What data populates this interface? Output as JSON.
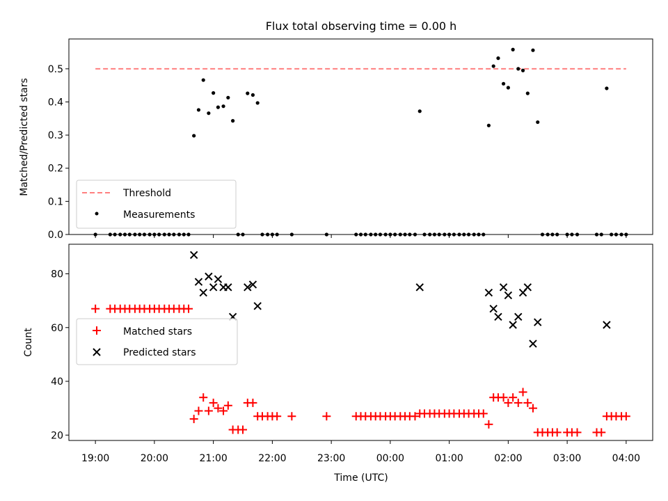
{
  "title": "Flux total observing time = 0.00 h",
  "xlabel": "Time (UTC)",
  "x_tick_labels": [
    "19:00",
    "20:00",
    "21:00",
    "22:00",
    "23:00",
    "00:00",
    "01:00",
    "02:00",
    "03:00",
    "04:00"
  ],
  "colors": {
    "threshold": "#ff7f7f",
    "measurement": "#000000",
    "matched": "#ff0000",
    "predicted": "#000000"
  },
  "chart_data": [
    {
      "type": "scatter",
      "ylabel": "Matched/Predicted stars",
      "xlim": [
        18.55,
        28.45
      ],
      "ylim": [
        0.0,
        0.59
      ],
      "y_ticks": [
        0.0,
        0.1,
        0.2,
        0.3,
        0.4,
        0.5
      ],
      "y_tick_labels": [
        "0.0",
        "0.1",
        "0.2",
        "0.3",
        "0.4",
        "0.5"
      ],
      "legend_loc": "lower-left",
      "threshold": {
        "name": "Threshold",
        "value": 0.5,
        "x_range": [
          19.0,
          28.0
        ]
      },
      "series": [
        {
          "name": "Measurements",
          "points": [
            [
              19.0,
              0
            ],
            [
              19.25,
              0
            ],
            [
              19.33,
              0
            ],
            [
              19.42,
              0
            ],
            [
              19.5,
              0
            ],
            [
              19.58,
              0
            ],
            [
              19.67,
              0
            ],
            [
              19.75,
              0
            ],
            [
              19.83,
              0
            ],
            [
              19.92,
              0
            ],
            [
              20.0,
              0
            ],
            [
              20.08,
              0
            ],
            [
              20.17,
              0
            ],
            [
              20.25,
              0
            ],
            [
              20.33,
              0
            ],
            [
              20.42,
              0
            ],
            [
              20.5,
              0
            ],
            [
              20.58,
              0
            ],
            [
              20.67,
              0.298
            ],
            [
              20.75,
              0.376
            ],
            [
              20.83,
              0.466
            ],
            [
              20.92,
              0.366
            ],
            [
              21.0,
              0.427
            ],
            [
              21.08,
              0.384
            ],
            [
              21.17,
              0.387
            ],
            [
              21.25,
              0.413
            ],
            [
              21.33,
              0.343
            ],
            [
              21.42,
              0
            ],
            [
              21.5,
              0
            ],
            [
              21.58,
              0.426
            ],
            [
              21.67,
              0.421
            ],
            [
              21.75,
              0.397
            ],
            [
              21.83,
              0
            ],
            [
              21.92,
              0
            ],
            [
              22.0,
              0
            ],
            [
              22.08,
              0
            ],
            [
              22.33,
              0
            ],
            [
              22.92,
              0
            ],
            [
              23.42,
              0
            ],
            [
              23.5,
              0
            ],
            [
              23.58,
              0
            ],
            [
              23.67,
              0
            ],
            [
              23.75,
              0
            ],
            [
              23.83,
              0
            ],
            [
              23.92,
              0
            ],
            [
              24.0,
              0
            ],
            [
              24.08,
              0
            ],
            [
              24.17,
              0
            ],
            [
              24.25,
              0
            ],
            [
              24.33,
              0
            ],
            [
              24.42,
              0
            ],
            [
              24.5,
              0.372
            ],
            [
              24.58,
              0
            ],
            [
              24.67,
              0
            ],
            [
              24.75,
              0
            ],
            [
              24.83,
              0
            ],
            [
              24.92,
              0
            ],
            [
              25.0,
              0
            ],
            [
              25.08,
              0
            ],
            [
              25.17,
              0
            ],
            [
              25.25,
              0
            ],
            [
              25.33,
              0
            ],
            [
              25.42,
              0
            ],
            [
              25.5,
              0
            ],
            [
              25.58,
              0
            ],
            [
              25.67,
              0.329
            ],
            [
              25.75,
              0.508
            ],
            [
              25.83,
              0.532
            ],
            [
              25.92,
              0.455
            ],
            [
              26.0,
              0.443
            ],
            [
              26.08,
              0.558
            ],
            [
              26.17,
              0.5
            ],
            [
              26.25,
              0.495
            ],
            [
              26.33,
              0.426
            ],
            [
              26.42,
              0.556
            ],
            [
              26.5,
              0.339
            ],
            [
              26.58,
              0
            ],
            [
              26.67,
              0
            ],
            [
              26.75,
              0
            ],
            [
              26.83,
              0
            ],
            [
              27.0,
              0
            ],
            [
              27.08,
              0
            ],
            [
              27.17,
              0
            ],
            [
              27.5,
              0
            ],
            [
              27.58,
              0
            ],
            [
              27.67,
              0.441
            ],
            [
              27.75,
              0
            ],
            [
              27.83,
              0
            ],
            [
              27.92,
              0
            ],
            [
              28.0,
              0
            ]
          ]
        }
      ]
    },
    {
      "type": "scatter",
      "ylabel": "Count",
      "xlim": [
        18.55,
        28.45
      ],
      "ylim": [
        18,
        91
      ],
      "y_ticks": [
        20,
        40,
        60,
        80
      ],
      "y_tick_labels": [
        "20",
        "40",
        "60",
        "80"
      ],
      "legend_loc": "center-left",
      "series": [
        {
          "name": "Matched stars",
          "marker": "plus",
          "points": [
            [
              19.0,
              67
            ],
            [
              19.25,
              67
            ],
            [
              19.33,
              67
            ],
            [
              19.42,
              67
            ],
            [
              19.5,
              67
            ],
            [
              19.58,
              67
            ],
            [
              19.67,
              67
            ],
            [
              19.75,
              67
            ],
            [
              19.83,
              67
            ],
            [
              19.92,
              67
            ],
            [
              20.0,
              67
            ],
            [
              20.08,
              67
            ],
            [
              20.17,
              67
            ],
            [
              20.25,
              67
            ],
            [
              20.33,
              67
            ],
            [
              20.42,
              67
            ],
            [
              20.5,
              67
            ],
            [
              20.58,
              67
            ],
            [
              20.67,
              26
            ],
            [
              20.75,
              29
            ],
            [
              20.83,
              34
            ],
            [
              20.92,
              29
            ],
            [
              21.0,
              32
            ],
            [
              21.08,
              30
            ],
            [
              21.17,
              29
            ],
            [
              21.25,
              31
            ],
            [
              21.33,
              22
            ],
            [
              21.42,
              22
            ],
            [
              21.5,
              22
            ],
            [
              21.58,
              32
            ],
            [
              21.67,
              32
            ],
            [
              21.75,
              27
            ],
            [
              21.83,
              27
            ],
            [
              21.92,
              27
            ],
            [
              22.0,
              27
            ],
            [
              22.08,
              27
            ],
            [
              22.33,
              27
            ],
            [
              22.92,
              27
            ],
            [
              23.42,
              27
            ],
            [
              23.5,
              27
            ],
            [
              23.58,
              27
            ],
            [
              23.67,
              27
            ],
            [
              23.75,
              27
            ],
            [
              23.83,
              27
            ],
            [
              23.92,
              27
            ],
            [
              24.0,
              27
            ],
            [
              24.08,
              27
            ],
            [
              24.17,
              27
            ],
            [
              24.25,
              27
            ],
            [
              24.33,
              27
            ],
            [
              24.42,
              27
            ],
            [
              24.5,
              28
            ],
            [
              24.58,
              28
            ],
            [
              24.67,
              28
            ],
            [
              24.75,
              28
            ],
            [
              24.83,
              28
            ],
            [
              24.92,
              28
            ],
            [
              25.0,
              28
            ],
            [
              25.08,
              28
            ],
            [
              25.17,
              28
            ],
            [
              25.25,
              28
            ],
            [
              25.33,
              28
            ],
            [
              25.42,
              28
            ],
            [
              25.5,
              28
            ],
            [
              25.58,
              28
            ],
            [
              25.67,
              24
            ],
            [
              25.75,
              34
            ],
            [
              25.83,
              34
            ],
            [
              25.92,
              34
            ],
            [
              26.0,
              32
            ],
            [
              26.08,
              34
            ],
            [
              26.17,
              32
            ],
            [
              26.25,
              36
            ],
            [
              26.33,
              32
            ],
            [
              26.42,
              30
            ],
            [
              26.5,
              21
            ],
            [
              26.58,
              21
            ],
            [
              26.67,
              21
            ],
            [
              26.75,
              21
            ],
            [
              26.83,
              21
            ],
            [
              27.0,
              21
            ],
            [
              27.08,
              21
            ],
            [
              27.17,
              21
            ],
            [
              27.5,
              21
            ],
            [
              27.58,
              21
            ],
            [
              27.67,
              27
            ],
            [
              27.75,
              27
            ],
            [
              27.83,
              27
            ],
            [
              27.92,
              27
            ],
            [
              28.0,
              27
            ]
          ]
        },
        {
          "name": "Predicted stars",
          "marker": "x",
          "points": [
            [
              20.67,
              87
            ],
            [
              20.75,
              77
            ],
            [
              20.83,
              73
            ],
            [
              20.92,
              79
            ],
            [
              21.0,
              75
            ],
            [
              21.08,
              78
            ],
            [
              21.17,
              75
            ],
            [
              21.25,
              75
            ],
            [
              21.33,
              64
            ],
            [
              21.58,
              75
            ],
            [
              21.67,
              76
            ],
            [
              21.75,
              68
            ],
            [
              24.5,
              75
            ],
            [
              25.67,
              73
            ],
            [
              25.75,
              67
            ],
            [
              25.83,
              64
            ],
            [
              25.92,
              75
            ],
            [
              26.0,
              72
            ],
            [
              26.08,
              61
            ],
            [
              26.17,
              64
            ],
            [
              26.25,
              73
            ],
            [
              26.33,
              75
            ],
            [
              26.42,
              54
            ],
            [
              26.5,
              62
            ],
            [
              27.67,
              61
            ]
          ]
        }
      ]
    }
  ]
}
